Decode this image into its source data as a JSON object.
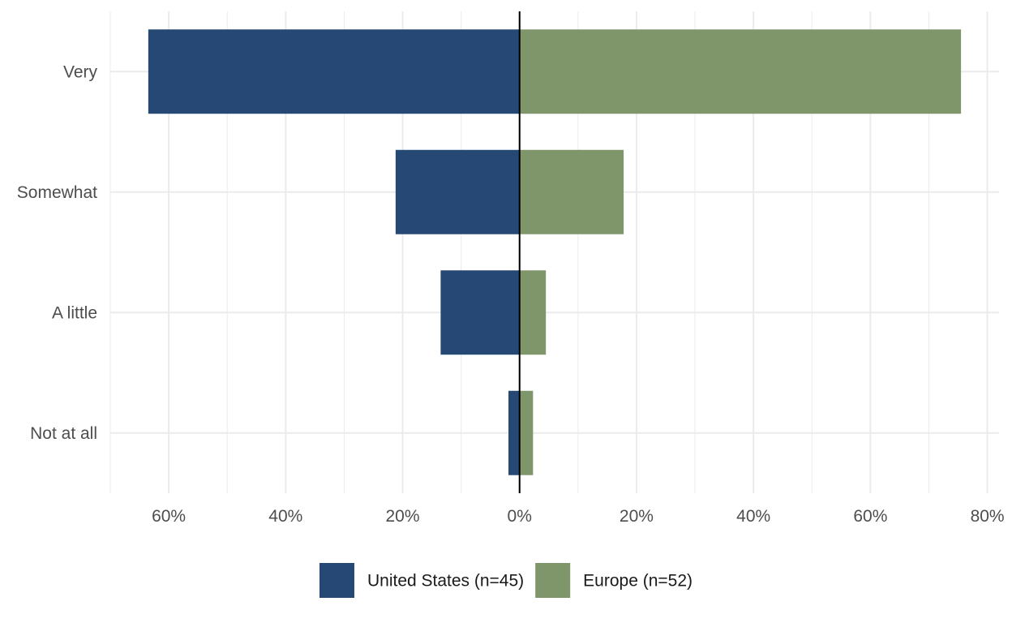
{
  "chart_data": {
    "type": "bar",
    "orientation": "horizontal",
    "layout": "diverging",
    "categories": [
      "Very",
      "Somewhat",
      "A little",
      "Not at all"
    ],
    "series": [
      {
        "name": "United States (n=45)",
        "side": "negative",
        "color": "#264874",
        "values": [
          63.5,
          21.2,
          13.5,
          1.9
        ]
      },
      {
        "name": "Europe (n=52)",
        "side": "positive",
        "color": "#7f956a",
        "values": [
          75.5,
          17.8,
          4.5,
          2.3
        ]
      }
    ],
    "xlim": [
      -70,
      82
    ],
    "x_ticks": [
      -60,
      -40,
      -20,
      0,
      20,
      40,
      60,
      80
    ],
    "x_tick_labels": [
      "60%",
      "40%",
      "20%",
      "0%",
      "20%",
      "40%",
      "60%",
      "80%"
    ],
    "grid": true,
    "zero_line": true,
    "legend_position": "bottom"
  }
}
